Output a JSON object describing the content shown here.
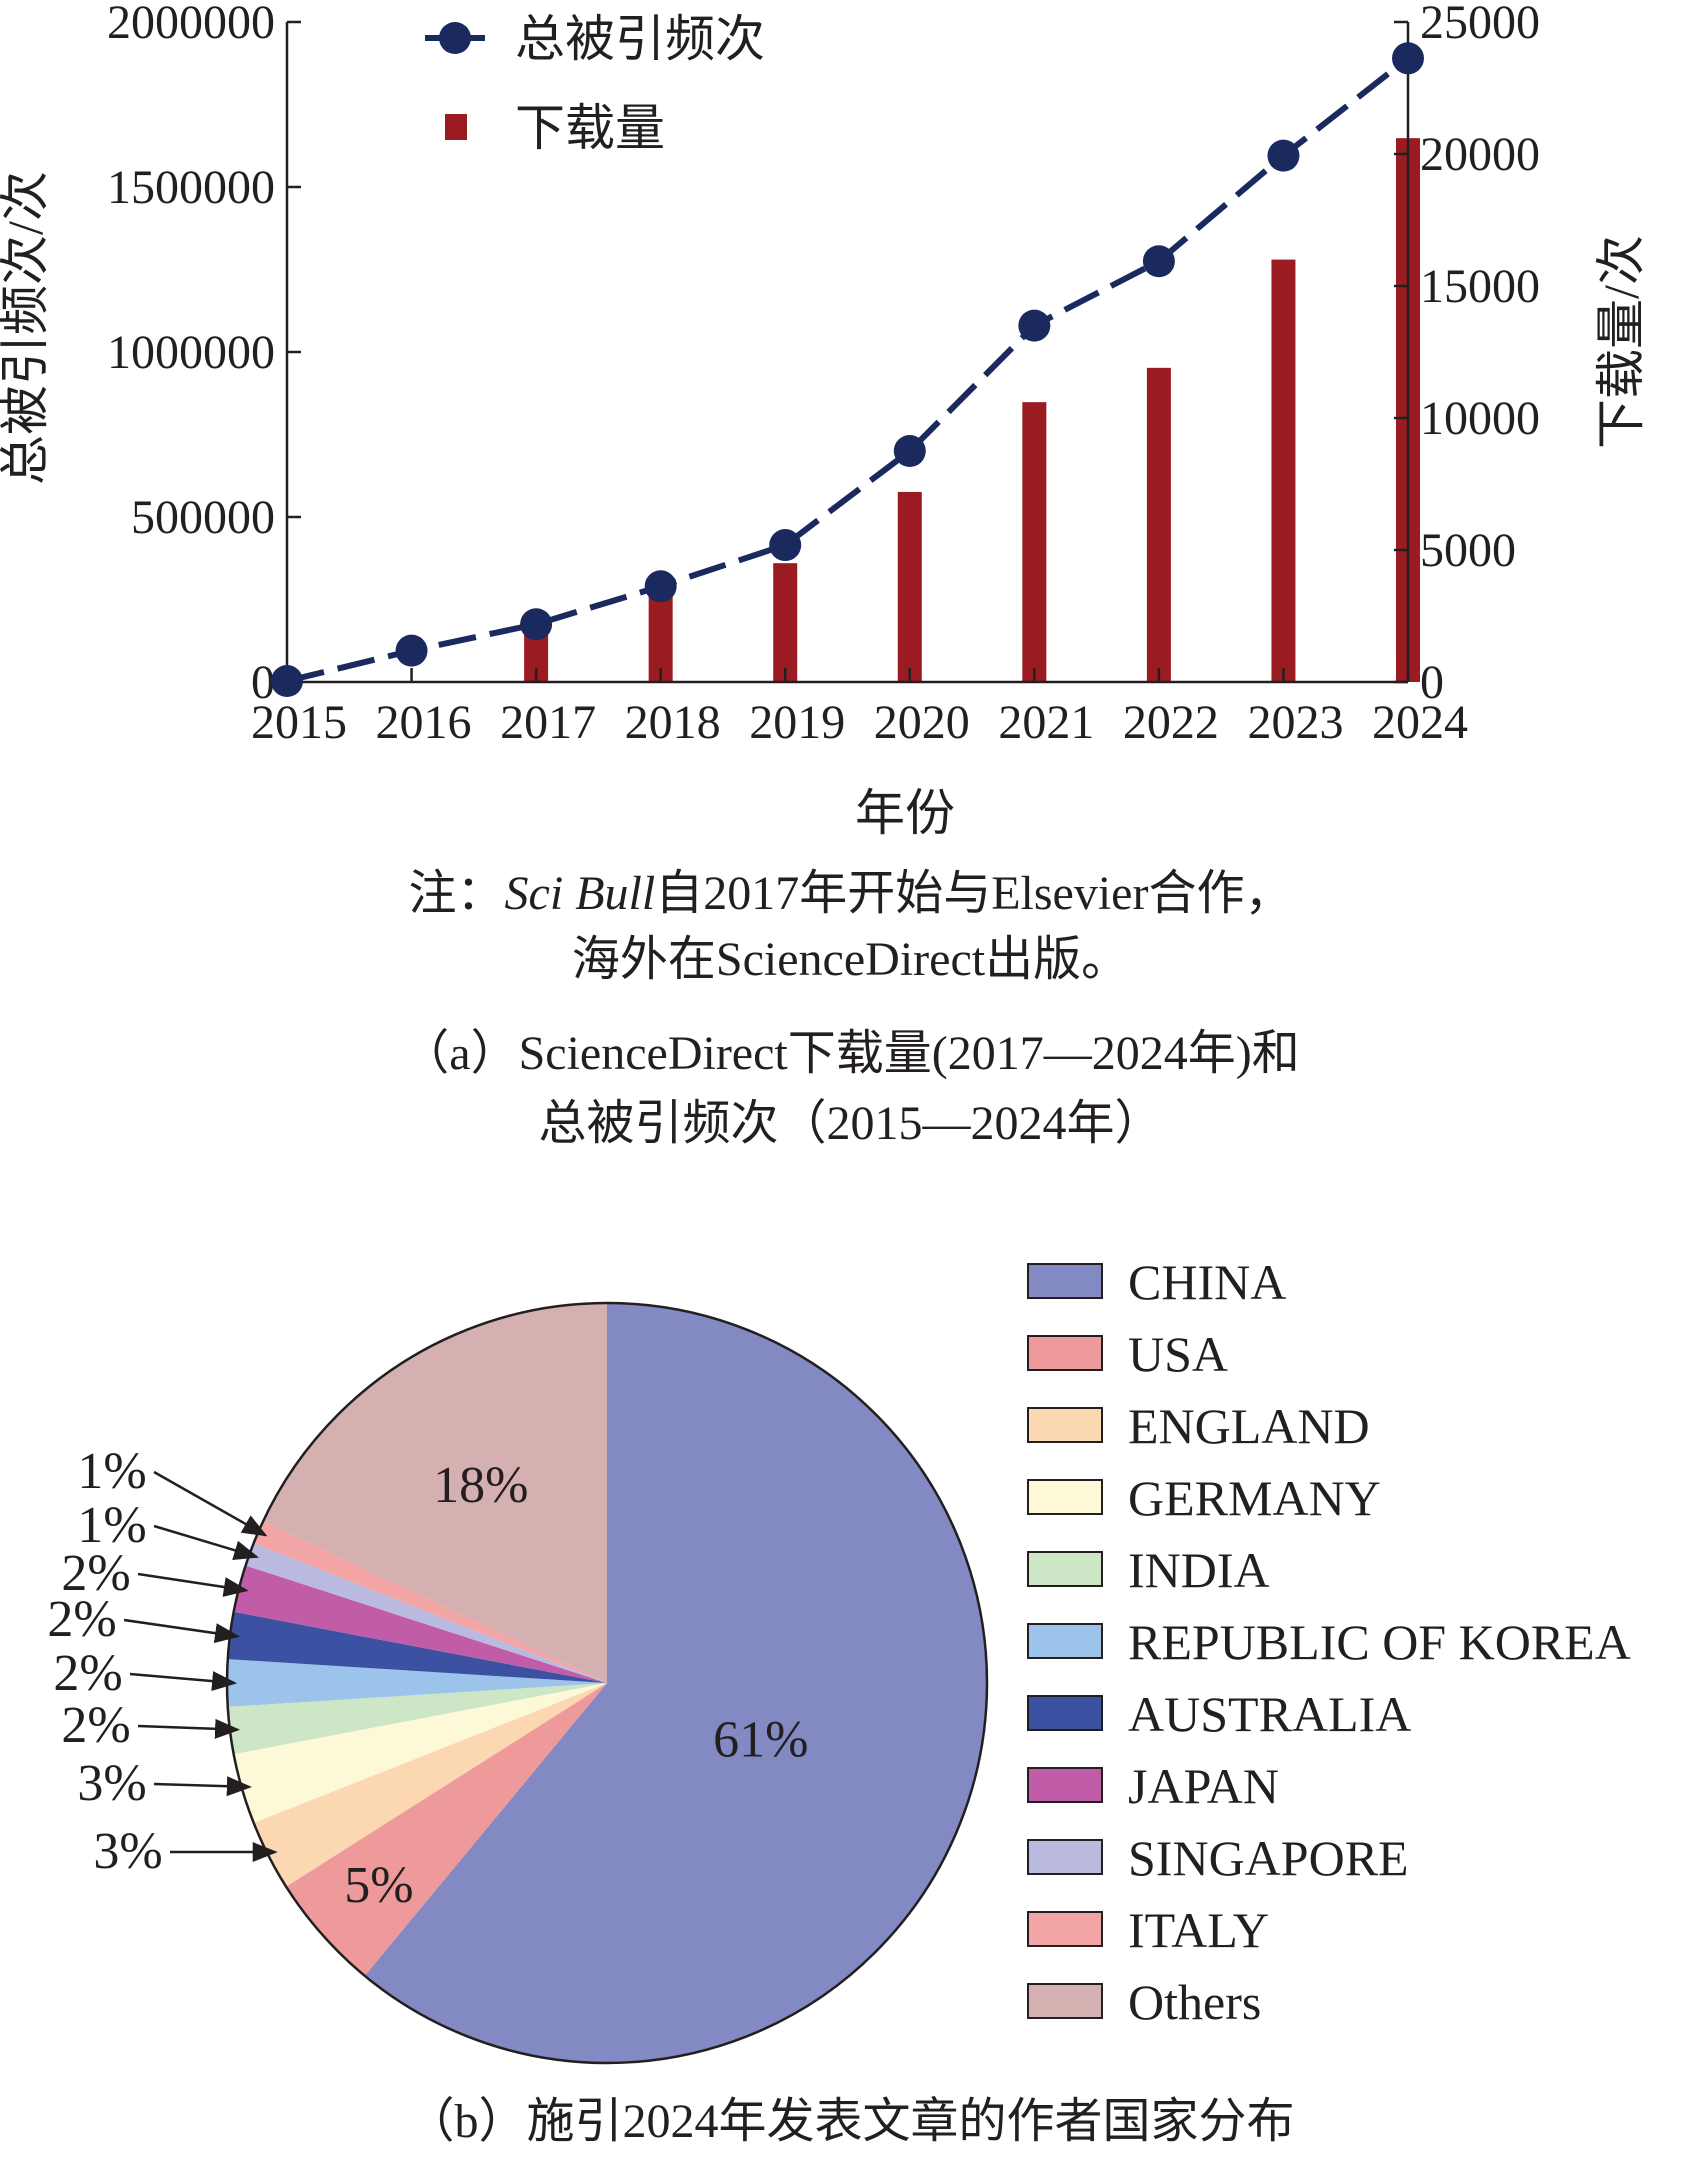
{
  "chart_data": [
    {
      "type": "bar+line",
      "subtitle_a": "（a）ScienceDirect下载量(2017—2024年)和",
      "subtitle_b": "总被引频次（2015—2024年）",
      "note_prefix": "注：",
      "note_italic": "Sci Bull",
      "note_rest": "自2017年开始与Elsevier合作，",
      "note_line2": "海外在ScienceDirect出版。",
      "xlabel": "年份",
      "ylabel_left": "总被引频次/次",
      "ylabel_right": "下载量/次",
      "categories": [
        "2015",
        "2016",
        "2017",
        "2018",
        "2019",
        "2020",
        "2021",
        "2022",
        "2023",
        "2024"
      ],
      "ylim_left": [
        0,
        2000000
      ],
      "ylim_right": [
        0,
        25000
      ],
      "yticks_left": [
        0,
        500000,
        1000000,
        1500000,
        2000000
      ],
      "yticks_right": [
        0,
        5000,
        10000,
        15000,
        20000,
        25000
      ],
      "series": [
        {
          "name": "总被引频次",
          "kind": "line",
          "axis": "left",
          "color": "#1a2a5e",
          "values": [
            3000,
            95000,
            175000,
            290000,
            415000,
            700000,
            1080000,
            1275000,
            1595000,
            1890000
          ]
        },
        {
          "name": "下载量",
          "kind": "bar",
          "axis": "right",
          "color": "#9b1c20",
          "values": [
            0,
            0,
            1800,
            3400,
            4500,
            7200,
            10600,
            11900,
            16000,
            20600
          ]
        }
      ],
      "legend_position": "top-left",
      "grid": false
    },
    {
      "type": "pie",
      "title": "（b）施引2024年发表文章的作者国家分布",
      "legend_position": "right",
      "slices": [
        {
          "name": "CHINA",
          "value": 61,
          "label": "61%",
          "color": "#8389c3"
        },
        {
          "name": "USA",
          "value": 5,
          "label": "5%",
          "color": "#ef9a9a"
        },
        {
          "name": "ENGLAND",
          "value": 3,
          "label": "3%",
          "color": "#fbd7b2"
        },
        {
          "name": "GERMANY",
          "value": 3,
          "label": "3%",
          "color": "#fcf8d8"
        },
        {
          "name": "INDIA",
          "value": 2,
          "label": "2%",
          "color": "#cde6c6"
        },
        {
          "name": "REPUBLIC OF KOREA",
          "value": 2,
          "label": "2%",
          "color": "#9cc3ea"
        },
        {
          "name": "AUSTRALIA",
          "value": 2,
          "label": "2%",
          "color": "#3d51a3"
        },
        {
          "name": "JAPAN",
          "value": 2,
          "label": "2%",
          "color": "#c15ca8"
        },
        {
          "name": "SINGAPORE",
          "value": 1,
          "label": "1%",
          "color": "#bab9df"
        },
        {
          "name": "ITALY",
          "value": 1,
          "label": "1%",
          "color": "#f3a4a4"
        },
        {
          "name": "Others",
          "value": 18,
          "label": "18%",
          "color": "#d4b0b0"
        }
      ]
    }
  ]
}
